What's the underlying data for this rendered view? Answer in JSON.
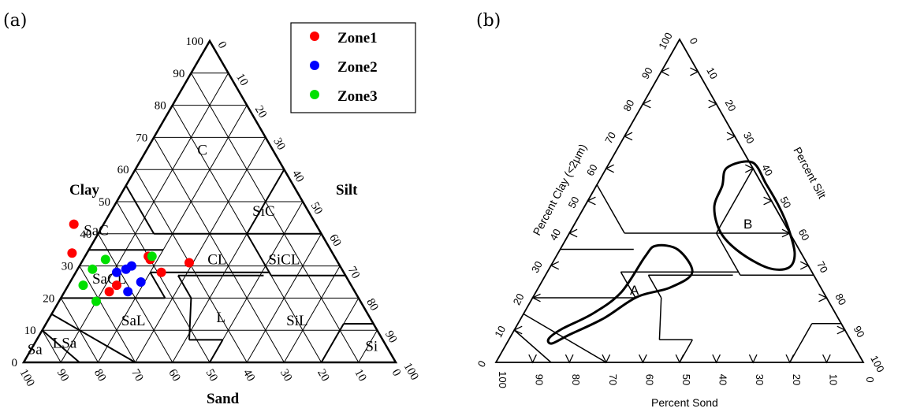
{
  "panel_a": {
    "label": "(a)",
    "axis_titles": {
      "clay": "Clay",
      "silt": "Silt",
      "sand": "Sand"
    },
    "clay_ticks": [
      "0",
      "10",
      "20",
      "30",
      "40",
      "50",
      "60",
      "70",
      "80",
      "90",
      "100"
    ],
    "silt_ticks": [
      "0",
      "10",
      "20",
      "30",
      "40",
      "50",
      "60",
      "70",
      "80",
      "90",
      "100"
    ],
    "sand_ticks": [
      "100",
      "90",
      "80",
      "70",
      "60",
      "50",
      "40",
      "30",
      "20",
      "10",
      "0"
    ],
    "regions": [
      {
        "id": "C",
        "label": "C"
      },
      {
        "id": "SiC",
        "label": "SiC"
      },
      {
        "id": "SaC",
        "label": "SaC"
      },
      {
        "id": "CL",
        "label": "CL"
      },
      {
        "id": "SiCL",
        "label": "SiCL"
      },
      {
        "id": "SaCL",
        "label": "SaCL"
      },
      {
        "id": "SaL",
        "label": "SaL"
      },
      {
        "id": "L",
        "label": "L"
      },
      {
        "id": "SiL",
        "label": "SiL"
      },
      {
        "id": "Sa",
        "label": "Sa"
      },
      {
        "id": "LSa",
        "label": "LSa"
      },
      {
        "id": "Si",
        "label": "Si"
      }
    ],
    "legend": [
      {
        "name": "Zone1",
        "color": "#ff0000"
      },
      {
        "name": "Zone2",
        "color": "#0000ff"
      },
      {
        "name": "Zone3",
        "color": "#00e000"
      }
    ]
  },
  "chart_data": {
    "type": "scatter",
    "coordinate_system": "ternary (clay %, silt %, sand %)",
    "series": [
      {
        "name": "Zone1",
        "color": "#ff0000",
        "points": [
          {
            "clay": 43,
            "sand": 65
          },
          {
            "clay": 34,
            "sand": 70
          },
          {
            "clay": 33,
            "sand": 50
          },
          {
            "clay": 32,
            "sand": 50
          },
          {
            "clay": 31,
            "sand": 40
          },
          {
            "clay": 28,
            "sand": 49
          },
          {
            "clay": 24,
            "sand": 63
          },
          {
            "clay": 22,
            "sand": 66
          }
        ]
      },
      {
        "name": "Zone2",
        "color": "#0000ff",
        "points": [
          {
            "clay": 30,
            "sand": 56
          },
          {
            "clay": 29,
            "sand": 58
          },
          {
            "clay": 28,
            "sand": 61
          },
          {
            "clay": 25,
            "sand": 56
          },
          {
            "clay": 22,
            "sand": 61
          }
        ]
      },
      {
        "name": "Zone3",
        "color": "#00e000",
        "points": [
          {
            "clay": 32,
            "sand": 62
          },
          {
            "clay": 33,
            "sand": 49
          },
          {
            "clay": 29,
            "sand": 67
          },
          {
            "clay": 24,
            "sand": 72
          },
          {
            "clay": 19,
            "sand": 71
          }
        ]
      }
    ]
  },
  "panel_b": {
    "label": "(b)",
    "axis_titles": {
      "clay": "Percent Clay (<2μm)",
      "silt": "Percent Silt",
      "sand": "Percent Sond"
    },
    "left_ticks": [
      "0",
      "10",
      "20",
      "30",
      "40",
      "50",
      "60",
      "70",
      "80",
      "90",
      "100"
    ],
    "right_ticks": [
      "0",
      "10",
      "20",
      "30",
      "40",
      "50",
      "60",
      "70",
      "80",
      "90",
      "100"
    ],
    "bottom_ticks": [
      "100",
      "90",
      "80",
      "70",
      "60",
      "50",
      "40",
      "30",
      "20",
      "10",
      "0"
    ],
    "region_labels": [
      {
        "id": "A",
        "label": "A"
      },
      {
        "id": "B",
        "label": "B"
      }
    ]
  }
}
